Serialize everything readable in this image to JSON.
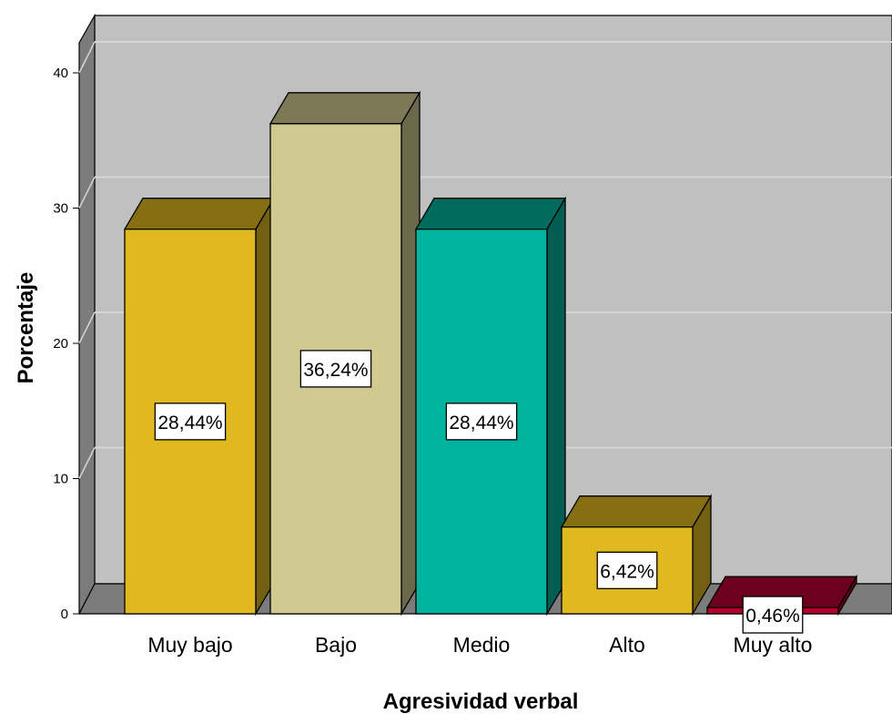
{
  "chart_data": {
    "type": "bar",
    "xlabel": "Agresividad verbal",
    "ylabel": "Porcentaje",
    "ylim": [
      0,
      40
    ],
    "yticks": [
      0,
      10,
      20,
      30,
      40
    ],
    "grid": true,
    "three_d": true,
    "categories": [
      "Muy bajo",
      "Bajo",
      "Medio",
      "Alto",
      "Muy alto"
    ],
    "values": [
      28.44,
      36.24,
      28.44,
      6.42,
      0.46
    ],
    "data_labels": [
      "28,44%",
      "36,24%",
      "28,44%",
      "6,42%",
      "0,46%"
    ],
    "colors": [
      "#e0b820",
      "#d0c990",
      "#00b39c",
      "#e0b820",
      "#b5002e"
    ],
    "background_color": "#c0c0c0"
  }
}
